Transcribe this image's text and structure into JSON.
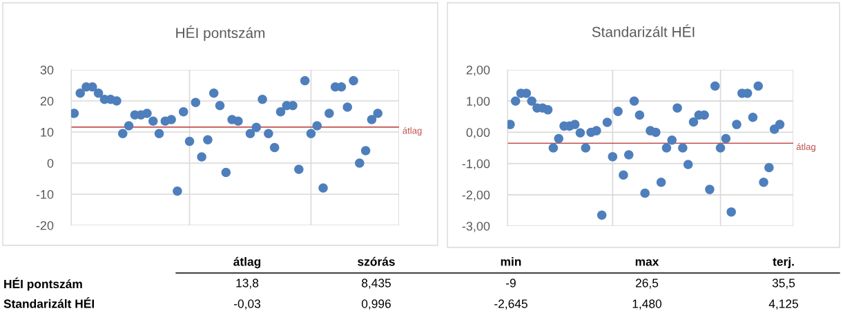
{
  "chart_data": [
    {
      "type": "scatter",
      "title": "HÉI pontszám",
      "marker": "circle",
      "grid": true,
      "tick_labels": "y",
      "categories": [
        null,
        null,
        null,
        null,
        null,
        null,
        null,
        null,
        null,
        null,
        null,
        null,
        null,
        null,
        null,
        null,
        null,
        null,
        null,
        null,
        null,
        null,
        null,
        null,
        null,
        null,
        null,
        null,
        null,
        null,
        null,
        null,
        null,
        null,
        null,
        null,
        null,
        null,
        null,
        null,
        null,
        null,
        null,
        null,
        null,
        null,
        null,
        null,
        null,
        null,
        null,
        null,
        null,
        null
      ],
      "series": [
        {
          "color": "#4e7fbc",
          "values": [
            16,
            22.5,
            24.5,
            24.5,
            22.5,
            20.5,
            20.5,
            20,
            9.5,
            12,
            15.5,
            15.5,
            16,
            13.5,
            9.5,
            13.5,
            14,
            -9,
            16.5,
            7,
            19.5,
            2,
            7.5,
            22.5,
            18.5,
            -3,
            14,
            13.5,
            null,
            9.5,
            11.5,
            20.5,
            9.5,
            5,
            16.5,
            18.5,
            18.5,
            -2,
            26.5,
            9.5,
            12,
            -8,
            16,
            24.5,
            24.5,
            18,
            26.5,
            0,
            4,
            14,
            16,
            null,
            null,
            null
          ]
        }
      ],
      "ylim": [
        -20,
        30
      ],
      "yticks": [
        -20,
        -10,
        0,
        10,
        20,
        30
      ],
      "ref_lines": [
        {
          "axis": "y",
          "value": 11.6,
          "label": "átlag",
          "color": "#c0504d"
        }
      ]
    },
    {
      "type": "scatter",
      "title": "Standarizált HÉI",
      "marker": "circle",
      "grid": true,
      "tick_labels": "y",
      "categories": [
        null,
        null,
        null,
        null,
        null,
        null,
        null,
        null,
        null,
        null,
        null,
        null,
        null,
        null,
        null,
        null,
        null,
        null,
        null,
        null,
        null,
        null,
        null,
        null,
        null,
        null,
        null,
        null,
        null,
        null,
        null,
        null,
        null,
        null,
        null,
        null,
        null,
        null,
        null,
        null,
        null,
        null,
        null,
        null,
        null,
        null,
        null,
        null,
        null,
        null,
        null,
        null,
        null
      ],
      "series": [
        {
          "color": "#4e7fbc",
          "values": [
            0.25,
            1.0,
            1.25,
            1.25,
            1.0,
            0.78,
            0.78,
            0.72,
            -0.5,
            -0.2,
            0.2,
            0.2,
            0.25,
            -0.02,
            -0.5,
            0.0,
            0.05,
            -2.65,
            0.32,
            -0.78,
            0.67,
            -1.37,
            -0.72,
            1.0,
            0.55,
            -1.95,
            0.05,
            0.0,
            -1.6,
            -0.5,
            -0.25,
            0.78,
            -0.5,
            -1.03,
            0.33,
            0.55,
            0.55,
            -1.83,
            1.48,
            -0.5,
            -0.2,
            -2.55,
            0.25,
            1.25,
            1.25,
            0.48,
            1.48,
            -1.6,
            -1.13,
            0.1,
            0.25,
            null,
            null
          ]
        }
      ],
      "ylim": [
        -3,
        2
      ],
      "yticks": [
        {
          "value": -3,
          "label": "-3,00"
        },
        {
          "value": -2,
          "label": "-2,00"
        },
        {
          "value": -1,
          "label": "-1,00"
        },
        {
          "value": 0,
          "label": "0,00"
        },
        {
          "value": 1,
          "label": "1,00"
        },
        {
          "value": 2,
          "label": "2,00"
        }
      ],
      "ref_lines": [
        {
          "axis": "y",
          "value": -0.35,
          "label": "átlag",
          "color": "#c0504d"
        }
      ]
    },
    {
      "type": "other",
      "annotations": [
        "átlag",
        "szórás",
        "min",
        "max",
        "terj.",
        "HÉI pontszám",
        "13,8",
        "8,435",
        "-9",
        "26,5",
        "35,5",
        "Standarizált HÉI",
        "-0,03",
        "0,996",
        "-2,645",
        "1,480",
        "4,125"
      ]
    }
  ]
}
